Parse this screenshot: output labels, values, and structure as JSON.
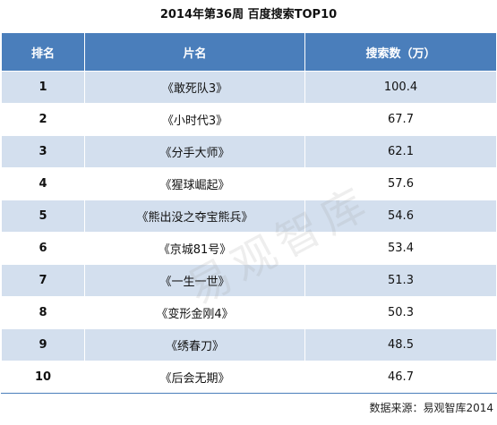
{
  "title": "2014年第36周 百度搜索TOP10",
  "headers": {
    "rank": "排名",
    "name": "片名",
    "value": "搜索数（万）"
  },
  "watermark": "易观智库",
  "source": "数据来源：易观智库2014",
  "chart_data": {
    "type": "table",
    "title": "2014年第36周 百度搜索TOP10",
    "columns": [
      "排名",
      "片名",
      "搜索数（万）"
    ],
    "rows": [
      {
        "rank": "1",
        "name": "《敢死队3》",
        "value": "100.4"
      },
      {
        "rank": "2",
        "name": "《小时代3》",
        "value": "67.7"
      },
      {
        "rank": "3",
        "name": "《分手大师》",
        "value": "62.1"
      },
      {
        "rank": "4",
        "name": "《猩球崛起》",
        "value": "57.6"
      },
      {
        "rank": "5",
        "name": "《熊出没之夺宝熊兵》",
        "value": "54.6"
      },
      {
        "rank": "6",
        "name": "《京城81号》",
        "value": "53.4"
      },
      {
        "rank": "7",
        "name": "《一生一世》",
        "value": "51.3"
      },
      {
        "rank": "8",
        "name": "《变形金刚4》",
        "value": "50.3"
      },
      {
        "rank": "9",
        "name": "《绣春刀》",
        "value": "48.5"
      },
      {
        "rank": "10",
        "name": "《后会无期》",
        "value": "46.7"
      }
    ]
  }
}
